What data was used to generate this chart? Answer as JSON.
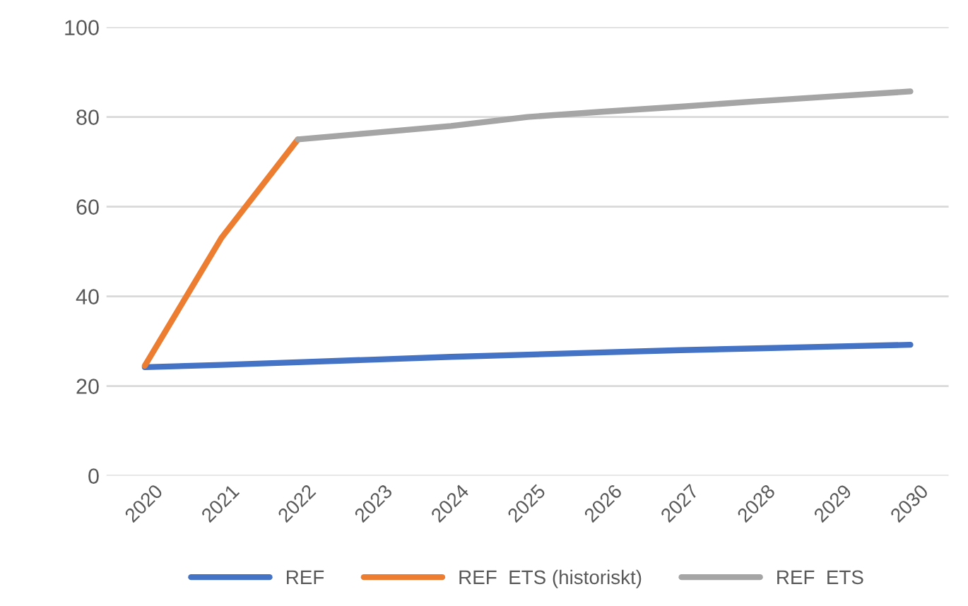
{
  "chart_data": {
    "type": "line",
    "categories": [
      "2020",
      "2021",
      "2022",
      "2023",
      "2024",
      "2025",
      "2026",
      "2027",
      "2028",
      "2029",
      "2030"
    ],
    "series": [
      {
        "name": "REF",
        "color": "#4472c4",
        "values": [
          24.2,
          24.7,
          25.3,
          25.9,
          26.5,
          27.0,
          27.5,
          28.0,
          28.4,
          28.8,
          29.2
        ]
      },
      {
        "name": "REF  ETS (historiskt)",
        "color": "#ed7d31",
        "values": [
          24.5,
          53,
          75,
          null,
          null,
          null,
          null,
          null,
          null,
          null,
          null
        ]
      },
      {
        "name": "REF  ETS",
        "color": "#a5a5a5",
        "values": [
          null,
          null,
          75,
          76.5,
          78,
          80,
          81.2,
          82.3,
          83.5,
          84.6,
          85.7
        ]
      }
    ],
    "ylim": [
      0,
      100
    ],
    "yticks": [
      0,
      20,
      40,
      60,
      80,
      100
    ],
    "grid": "y",
    "legend": "bottom",
    "marker": "none",
    "line_style": "solid"
  }
}
